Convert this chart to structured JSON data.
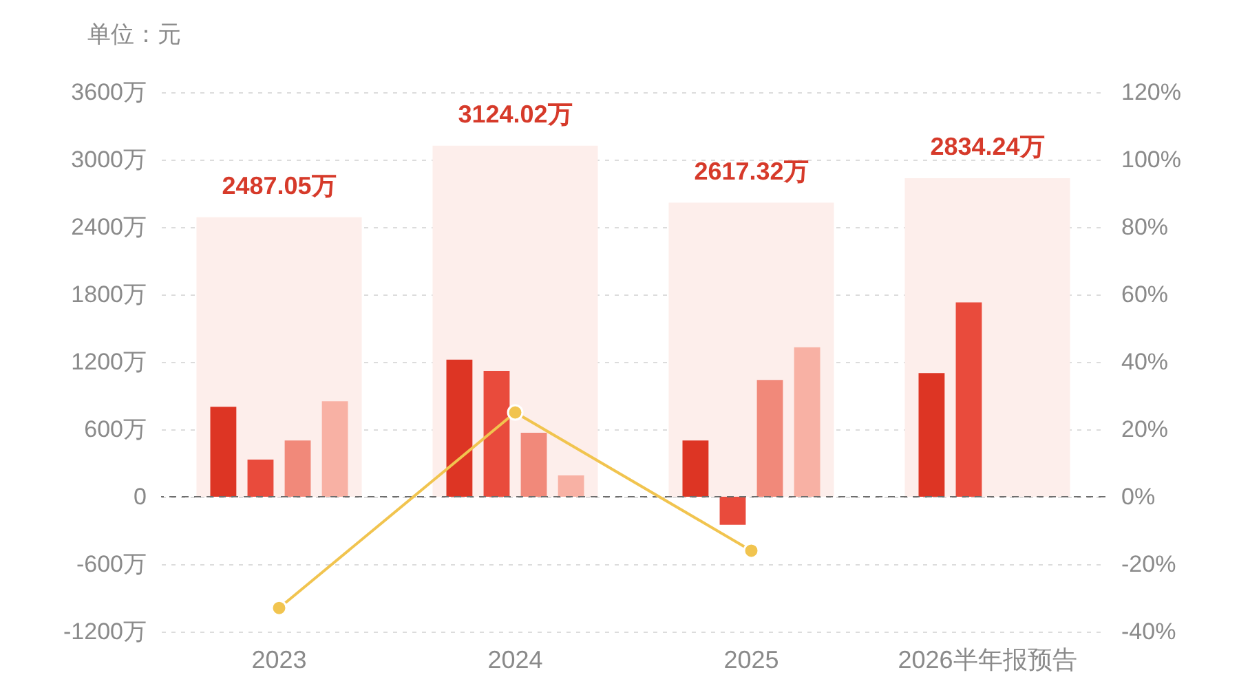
{
  "chart_data": {
    "type": "bar",
    "ylabel": "单位：元",
    "categories": [
      "2023",
      "2024",
      "2025",
      "2026半年报预告"
    ],
    "series": [
      {
        "color": "#fdeeeb",
        "values": [
          2487.05,
          3124.02,
          2617.32,
          2834.24
        ],
        "value_labels": [
          "2487.05万",
          "3124.02万",
          "2617.32万",
          "2834.24万"
        ]
      },
      {
        "color": "#dd3524",
        "values": [
          800,
          1220,
          500,
          1100
        ]
      },
      {
        "color": "#e94b3c",
        "values": [
          330,
          1120,
          -250,
          1730
        ]
      },
      {
        "color": "#f1897a",
        "values": [
          500,
          570,
          1040,
          null
        ]
      },
      {
        "color": "#f8b1a4",
        "values": [
          850,
          190,
          1330,
          null
        ]
      },
      {
        "type": "line",
        "axis": "y2",
        "color": "#f1c44f",
        "values": [
          -33,
          25,
          -16,
          null
        ]
      }
    ],
    "ylim": [
      -1200,
      3600
    ],
    "yticks": [
      {
        "value": -1200,
        "label": "-1200万"
      },
      {
        "value": -600,
        "label": "-600万"
      },
      0,
      {
        "value": 600,
        "label": "600万"
      },
      {
        "value": 1200,
        "label": "1200万"
      },
      {
        "value": 1800,
        "label": "1800万"
      },
      {
        "value": 2400,
        "label": "2400万"
      },
      {
        "value": 3000,
        "label": "3000万"
      },
      {
        "value": 3600,
        "label": "3600万"
      }
    ],
    "y2lim": [
      -40,
      120
    ],
    "y2ticks": [
      {
        "value": -40,
        "label": "-40%"
      },
      {
        "value": -20,
        "label": "-20%"
      },
      {
        "value": 0,
        "label": "0%"
      },
      {
        "value": 20,
        "label": "20%"
      },
      {
        "value": 40,
        "label": "40%"
      },
      {
        "value": 60,
        "label": "60%"
      },
      {
        "value": 80,
        "label": "80%"
      },
      {
        "value": 100,
        "label": "100%"
      },
      {
        "value": 120,
        "label": "120%"
      }
    ],
    "ref_lines": [
      {
        "axis": "y",
        "value": 0,
        "color": "#6e6e6e",
        "line_style": "dashed"
      }
    ],
    "grid": "y",
    "marker": "circle",
    "line_style": "solid"
  }
}
